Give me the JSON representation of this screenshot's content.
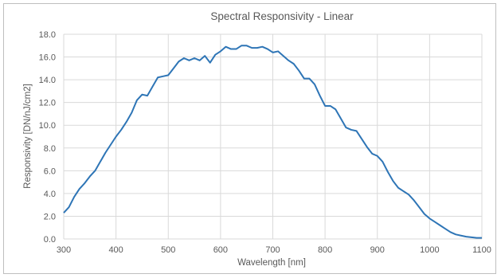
{
  "chart_data": {
    "type": "line",
    "title": "Spectral Responsivity -  Linear",
    "xlabel": "Wavelength [nm]",
    "ylabel": "Responsivity [DN/nJ/cm2]",
    "xlim": [
      300,
      1100
    ],
    "ylim": [
      0,
      18
    ],
    "x_ticks": [
      "300",
      "400",
      "500",
      "600",
      "700",
      "800",
      "900",
      "1000",
      "1100"
    ],
    "y_ticks": [
      "0.0",
      "2.0",
      "4.0",
      "6.0",
      "8.0",
      "10.0",
      "12.0",
      "14.0",
      "16.0",
      "18.0"
    ],
    "grid": true,
    "legend": "none",
    "colors": {
      "line": "#2e75b6",
      "grid": "#d9d9d9",
      "text": "#595959"
    },
    "series": [
      {
        "x": [
          300,
          310,
          320,
          330,
          340,
          350,
          360,
          370,
          380,
          390,
          400,
          410,
          420,
          430,
          440,
          450,
          460,
          470,
          480,
          490,
          500,
          510,
          520,
          530,
          540,
          550,
          560,
          570,
          580,
          590,
          600,
          610,
          620,
          630,
          640,
          650,
          660,
          670,
          680,
          690,
          700,
          710,
          720,
          730,
          740,
          750,
          760,
          770,
          780,
          790,
          800,
          810,
          820,
          830,
          840,
          850,
          860,
          870,
          880,
          890,
          900,
          910,
          920,
          930,
          940,
          950,
          960,
          970,
          980,
          990,
          1000,
          1010,
          1020,
          1030,
          1040,
          1050,
          1060,
          1070,
          1080,
          1090,
          1100
        ],
        "y": [
          2.3,
          2.8,
          3.7,
          4.4,
          4.9,
          5.5,
          6.0,
          6.8,
          7.6,
          8.3,
          9.0,
          9.6,
          10.3,
          11.1,
          12.2,
          12.7,
          12.6,
          13.4,
          14.2,
          14.3,
          14.4,
          15.0,
          15.6,
          15.9,
          15.7,
          15.9,
          15.7,
          16.1,
          15.5,
          16.2,
          16.5,
          16.9,
          16.7,
          16.7,
          17.0,
          17.0,
          16.8,
          16.8,
          16.9,
          16.7,
          16.4,
          16.5,
          16.1,
          15.7,
          15.4,
          14.8,
          14.1,
          14.1,
          13.6,
          12.6,
          11.7,
          11.7,
          11.4,
          10.6,
          9.8,
          9.6,
          9.5,
          8.8,
          8.1,
          7.5,
          7.3,
          6.8,
          5.9,
          5.1,
          4.5,
          4.2,
          3.9,
          3.4,
          2.8,
          2.2,
          1.8,
          1.5,
          1.2,
          0.9,
          0.6,
          0.4,
          0.3,
          0.2,
          0.15,
          0.1,
          0.1
        ]
      }
    ]
  }
}
